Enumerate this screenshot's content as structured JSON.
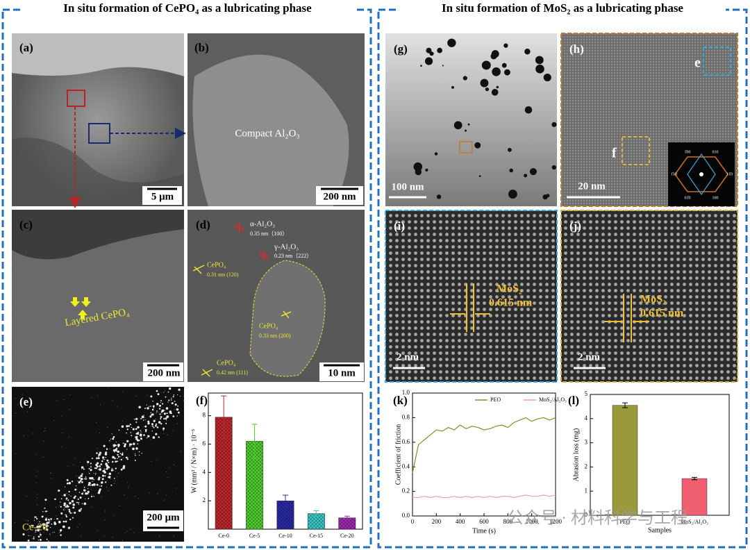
{
  "titles": {
    "left": "In situ formation of CePO₄ as a lubricating phase",
    "right": "In situ formation of MoS₂ as a lubricating phase"
  },
  "panels": {
    "a": {
      "label": "(a)",
      "scale": "5 μm"
    },
    "b": {
      "label": "(b)",
      "scale": "200 nm",
      "note": "Compact Al₂O₃"
    },
    "c": {
      "label": "(c)",
      "scale": "200 nm",
      "note": "Layered CePO₄"
    },
    "d": {
      "label": "(d)",
      "scale": "10 nm",
      "phases": [
        {
          "name": "α-Al₂O₃",
          "d": "0.35 nm（100）"
        },
        {
          "name": "γ-Al₂O₃",
          "d": "0.23 nm（222）"
        },
        {
          "name": "CePO₄",
          "d": "0.31 nm (120)"
        },
        {
          "name": "CePO₄",
          "d": "0.33 nm (200)"
        },
        {
          "name": "CePO₄",
          "d": "0.42 nm (111)"
        }
      ]
    },
    "e": {
      "label": "(e)",
      "scale": "200 μm",
      "note": "Ce-20"
    },
    "f": {
      "label": "(f)"
    },
    "g": {
      "label": "(g)",
      "scale": "100 nm"
    },
    "h": {
      "label": "(h)",
      "scale": "20 nm",
      "boxes": [
        "e",
        "f"
      ],
      "fft": [
        "1̄00",
        "010",
        "1̄10",
        "11̄0",
        "01̄0",
        "100"
      ]
    },
    "i": {
      "label": "(i)",
      "scale": "2 nm",
      "phase": "MoS₂",
      "d": "0.615 nm"
    },
    "j": {
      "label": "(j)",
      "scale": "2 nm",
      "phase": "MoS₂",
      "d": "0.615 nm"
    },
    "k": {
      "label": "(k)"
    },
    "l": {
      "label": "(l)"
    }
  },
  "watermark": "公众号 · 材料科学与工程",
  "chart_data": [
    {
      "type": "bar",
      "ylabel": "W (mm³ / N×m) · 10⁻⁵",
      "categories": [
        "Ce-0",
        "Ce-5",
        "Ce-10",
        "Ce-15",
        "Ce-20"
      ],
      "values": [
        7.9,
        6.2,
        2.0,
        1.1,
        0.8
      ],
      "errors": [
        1.5,
        1.2,
        0.4,
        0.2,
        0.12
      ],
      "colors": [
        "#c0282d",
        "#4fd02f",
        "#2a2aa8",
        "#3cc8c8",
        "#a02ab0"
      ],
      "ylim": [
        0,
        9.6
      ],
      "yticks": [
        2,
        4,
        6,
        8
      ]
    },
    {
      "type": "line",
      "xlabel": "Time (s)",
      "ylabel": "Coefficient of friction",
      "legend": "upper center",
      "x": [
        0,
        50,
        100,
        150,
        200,
        250,
        300,
        350,
        400,
        450,
        500,
        550,
        600,
        650,
        700,
        750,
        800,
        850,
        900,
        950,
        1000,
        1050,
        1100,
        1150,
        1200
      ],
      "series": [
        {
          "name": "PEO",
          "color": "#8a8a2e",
          "values": [
            0.35,
            0.58,
            0.62,
            0.66,
            0.7,
            0.69,
            0.72,
            0.7,
            0.74,
            0.71,
            0.73,
            0.72,
            0.7,
            0.71,
            0.73,
            0.74,
            0.72,
            0.76,
            0.78,
            0.8,
            0.77,
            0.79,
            0.8,
            0.78,
            0.8
          ]
        },
        {
          "name": "MoS₂/Al₂O₃",
          "color": "#e8a0a8",
          "values": [
            0.15,
            0.15,
            0.16,
            0.15,
            0.16,
            0.15,
            0.15,
            0.16,
            0.15,
            0.16,
            0.15,
            0.16,
            0.15,
            0.16,
            0.15,
            0.16,
            0.16,
            0.15,
            0.16,
            0.17,
            0.16,
            0.16,
            0.17,
            0.16,
            0.17
          ]
        }
      ],
      "xlim": [
        0,
        1200
      ],
      "xticks": [
        0,
        200,
        400,
        600,
        800,
        1000,
        1200
      ],
      "ylim": [
        0,
        1.0
      ],
      "yticks": [
        {
          "value": 0,
          "label": "0.0"
        },
        {
          "value": 0.2,
          "label": "0.2"
        },
        {
          "value": 0.4,
          "label": "0.4"
        },
        {
          "value": 0.6,
          "label": "0.6"
        },
        {
          "value": 0.8,
          "label": "0.8"
        },
        {
          "value": 1.0,
          "label": "1.0"
        }
      ]
    },
    {
      "type": "bar",
      "ylabel": "Abrasion loss (mg)",
      "xlabel": "Samples",
      "categories": [
        "PEO",
        "MoS₂/Al₂O₃"
      ],
      "values": [
        4.55,
        1.52
      ],
      "errors": [
        0.1,
        0.05
      ],
      "colors": [
        "#9a9a3a",
        "#f06070"
      ],
      "ylim": [
        0,
        5
      ],
      "yticks": [
        0,
        1,
        2,
        3,
        4,
        5
      ]
    }
  ]
}
